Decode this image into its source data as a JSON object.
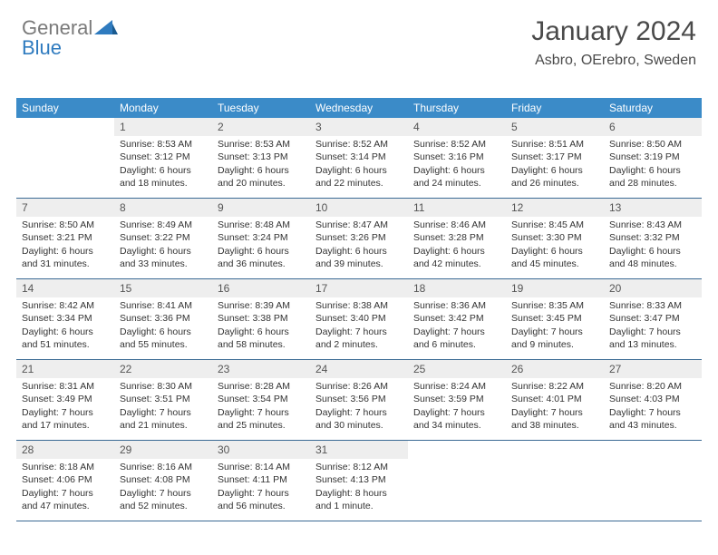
{
  "logo": {
    "text1": "General",
    "text2": "Blue"
  },
  "title": "January 2024",
  "location": "Asbro, OErebro, Sweden",
  "colors": {
    "header_bg": "#3b8bc8",
    "header_fg": "#ffffff",
    "daynum_bg": "#eeeeee",
    "row_border": "#3b6a94",
    "logo_gray": "#7a7a7a",
    "logo_blue": "#2f7bbf"
  },
  "day_headers": [
    "Sunday",
    "Monday",
    "Tuesday",
    "Wednesday",
    "Thursday",
    "Friday",
    "Saturday"
  ],
  "weeks": [
    [
      {
        "n": "",
        "sunrise": "",
        "sunset": "",
        "daylight": ""
      },
      {
        "n": "1",
        "sunrise": "Sunrise: 8:53 AM",
        "sunset": "Sunset: 3:12 PM",
        "daylight": "Daylight: 6 hours and 18 minutes."
      },
      {
        "n": "2",
        "sunrise": "Sunrise: 8:53 AM",
        "sunset": "Sunset: 3:13 PM",
        "daylight": "Daylight: 6 hours and 20 minutes."
      },
      {
        "n": "3",
        "sunrise": "Sunrise: 8:52 AM",
        "sunset": "Sunset: 3:14 PM",
        "daylight": "Daylight: 6 hours and 22 minutes."
      },
      {
        "n": "4",
        "sunrise": "Sunrise: 8:52 AM",
        "sunset": "Sunset: 3:16 PM",
        "daylight": "Daylight: 6 hours and 24 minutes."
      },
      {
        "n": "5",
        "sunrise": "Sunrise: 8:51 AM",
        "sunset": "Sunset: 3:17 PM",
        "daylight": "Daylight: 6 hours and 26 minutes."
      },
      {
        "n": "6",
        "sunrise": "Sunrise: 8:50 AM",
        "sunset": "Sunset: 3:19 PM",
        "daylight": "Daylight: 6 hours and 28 minutes."
      }
    ],
    [
      {
        "n": "7",
        "sunrise": "Sunrise: 8:50 AM",
        "sunset": "Sunset: 3:21 PM",
        "daylight": "Daylight: 6 hours and 31 minutes."
      },
      {
        "n": "8",
        "sunrise": "Sunrise: 8:49 AM",
        "sunset": "Sunset: 3:22 PM",
        "daylight": "Daylight: 6 hours and 33 minutes."
      },
      {
        "n": "9",
        "sunrise": "Sunrise: 8:48 AM",
        "sunset": "Sunset: 3:24 PM",
        "daylight": "Daylight: 6 hours and 36 minutes."
      },
      {
        "n": "10",
        "sunrise": "Sunrise: 8:47 AM",
        "sunset": "Sunset: 3:26 PM",
        "daylight": "Daylight: 6 hours and 39 minutes."
      },
      {
        "n": "11",
        "sunrise": "Sunrise: 8:46 AM",
        "sunset": "Sunset: 3:28 PM",
        "daylight": "Daylight: 6 hours and 42 minutes."
      },
      {
        "n": "12",
        "sunrise": "Sunrise: 8:45 AM",
        "sunset": "Sunset: 3:30 PM",
        "daylight": "Daylight: 6 hours and 45 minutes."
      },
      {
        "n": "13",
        "sunrise": "Sunrise: 8:43 AM",
        "sunset": "Sunset: 3:32 PM",
        "daylight": "Daylight: 6 hours and 48 minutes."
      }
    ],
    [
      {
        "n": "14",
        "sunrise": "Sunrise: 8:42 AM",
        "sunset": "Sunset: 3:34 PM",
        "daylight": "Daylight: 6 hours and 51 minutes."
      },
      {
        "n": "15",
        "sunrise": "Sunrise: 8:41 AM",
        "sunset": "Sunset: 3:36 PM",
        "daylight": "Daylight: 6 hours and 55 minutes."
      },
      {
        "n": "16",
        "sunrise": "Sunrise: 8:39 AM",
        "sunset": "Sunset: 3:38 PM",
        "daylight": "Daylight: 6 hours and 58 minutes."
      },
      {
        "n": "17",
        "sunrise": "Sunrise: 8:38 AM",
        "sunset": "Sunset: 3:40 PM",
        "daylight": "Daylight: 7 hours and 2 minutes."
      },
      {
        "n": "18",
        "sunrise": "Sunrise: 8:36 AM",
        "sunset": "Sunset: 3:42 PM",
        "daylight": "Daylight: 7 hours and 6 minutes."
      },
      {
        "n": "19",
        "sunrise": "Sunrise: 8:35 AM",
        "sunset": "Sunset: 3:45 PM",
        "daylight": "Daylight: 7 hours and 9 minutes."
      },
      {
        "n": "20",
        "sunrise": "Sunrise: 8:33 AM",
        "sunset": "Sunset: 3:47 PM",
        "daylight": "Daylight: 7 hours and 13 minutes."
      }
    ],
    [
      {
        "n": "21",
        "sunrise": "Sunrise: 8:31 AM",
        "sunset": "Sunset: 3:49 PM",
        "daylight": "Daylight: 7 hours and 17 minutes."
      },
      {
        "n": "22",
        "sunrise": "Sunrise: 8:30 AM",
        "sunset": "Sunset: 3:51 PM",
        "daylight": "Daylight: 7 hours and 21 minutes."
      },
      {
        "n": "23",
        "sunrise": "Sunrise: 8:28 AM",
        "sunset": "Sunset: 3:54 PM",
        "daylight": "Daylight: 7 hours and 25 minutes."
      },
      {
        "n": "24",
        "sunrise": "Sunrise: 8:26 AM",
        "sunset": "Sunset: 3:56 PM",
        "daylight": "Daylight: 7 hours and 30 minutes."
      },
      {
        "n": "25",
        "sunrise": "Sunrise: 8:24 AM",
        "sunset": "Sunset: 3:59 PM",
        "daylight": "Daylight: 7 hours and 34 minutes."
      },
      {
        "n": "26",
        "sunrise": "Sunrise: 8:22 AM",
        "sunset": "Sunset: 4:01 PM",
        "daylight": "Daylight: 7 hours and 38 minutes."
      },
      {
        "n": "27",
        "sunrise": "Sunrise: 8:20 AM",
        "sunset": "Sunset: 4:03 PM",
        "daylight": "Daylight: 7 hours and 43 minutes."
      }
    ],
    [
      {
        "n": "28",
        "sunrise": "Sunrise: 8:18 AM",
        "sunset": "Sunset: 4:06 PM",
        "daylight": "Daylight: 7 hours and 47 minutes."
      },
      {
        "n": "29",
        "sunrise": "Sunrise: 8:16 AM",
        "sunset": "Sunset: 4:08 PM",
        "daylight": "Daylight: 7 hours and 52 minutes."
      },
      {
        "n": "30",
        "sunrise": "Sunrise: 8:14 AM",
        "sunset": "Sunset: 4:11 PM",
        "daylight": "Daylight: 7 hours and 56 minutes."
      },
      {
        "n": "31",
        "sunrise": "Sunrise: 8:12 AM",
        "sunset": "Sunset: 4:13 PM",
        "daylight": "Daylight: 8 hours and 1 minute."
      },
      {
        "n": "",
        "sunrise": "",
        "sunset": "",
        "daylight": ""
      },
      {
        "n": "",
        "sunrise": "",
        "sunset": "",
        "daylight": ""
      },
      {
        "n": "",
        "sunrise": "",
        "sunset": "",
        "daylight": ""
      }
    ]
  ]
}
